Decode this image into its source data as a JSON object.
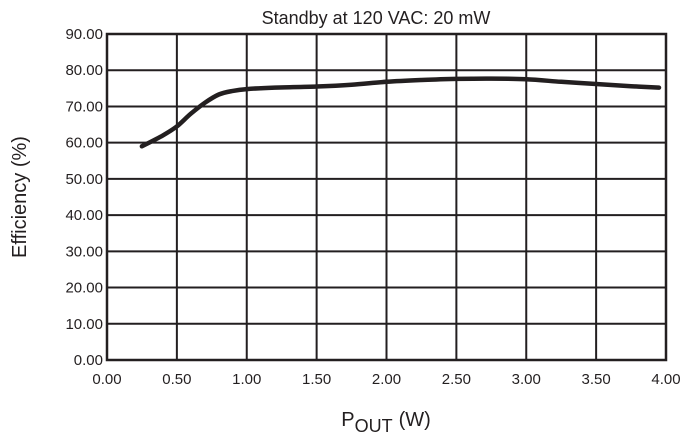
{
  "chart_data": {
    "type": "line",
    "title": "Standby at 120 VAC: 20 mW",
    "xlabel_main": "P",
    "xlabel_sub": "OUT",
    "xlabel_unit": "(W)",
    "ylabel": "Efficiency (%)",
    "xlim": [
      0,
      4
    ],
    "ylim": [
      0,
      90
    ],
    "grid": true,
    "x_ticks": [
      0,
      0.5,
      1,
      1.5,
      2,
      2.5,
      3,
      3.5,
      4
    ],
    "x_tick_labels": [
      "0.00",
      "0.50",
      "1.00",
      "1.50",
      "2.00",
      "2.50",
      "3.00",
      "3.50",
      "4.00"
    ],
    "y_ticks": [
      0,
      10,
      20,
      30,
      40,
      50,
      60,
      70,
      80,
      90
    ],
    "y_tick_labels": [
      "0.00",
      "10.00",
      "20.00",
      "30.00",
      "40.00",
      "50.00",
      "60.00",
      "70.00",
      "80.00",
      "90.00"
    ],
    "series": [
      {
        "x": [
          0.25,
          0.4,
          0.5,
          0.6,
          0.7,
          0.8,
          0.9,
          1.0,
          1.2,
          1.5,
          1.75,
          2.0,
          2.25,
          2.5,
          2.75,
          3.0,
          3.25,
          3.5,
          3.75,
          3.95
        ],
        "y": [
          59,
          62,
          64.5,
          68,
          71,
          73.3,
          74.3,
          74.8,
          75.2,
          75.5,
          76,
          76.8,
          77.3,
          77.6,
          77.7,
          77.5,
          76.8,
          76.2,
          75.6,
          75.2
        ]
      }
    ]
  }
}
